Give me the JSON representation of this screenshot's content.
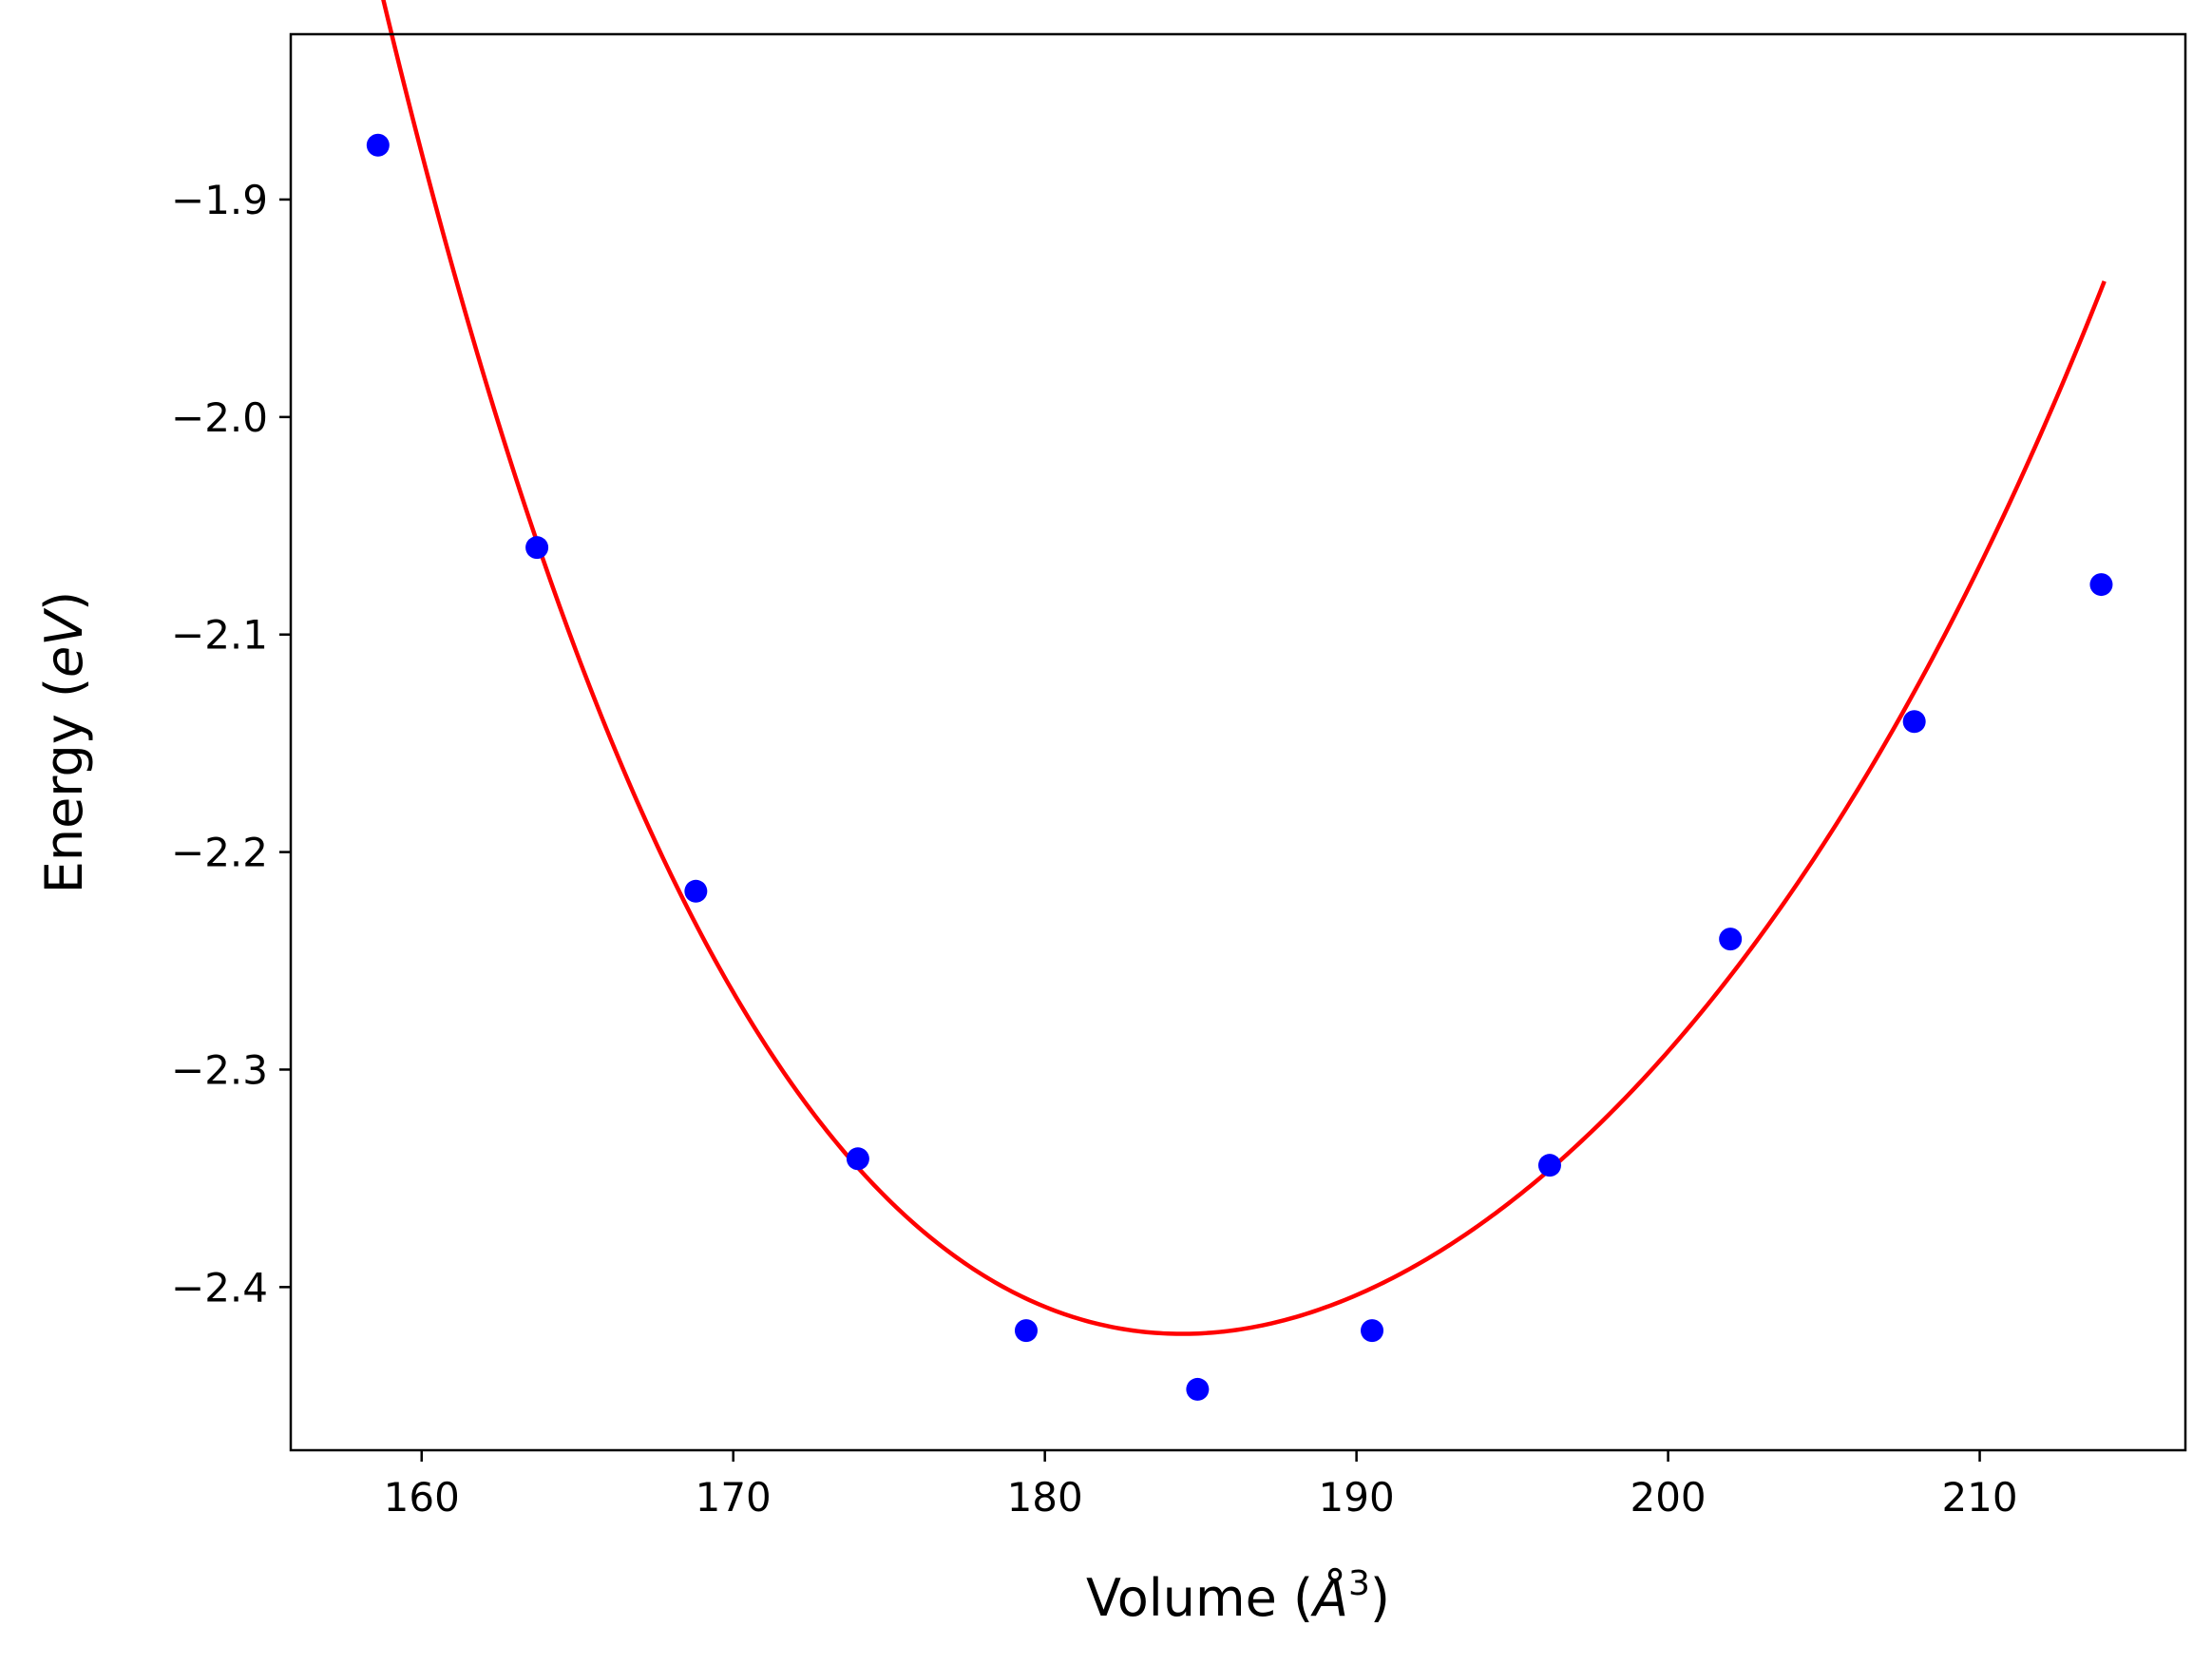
{
  "chart_data": {
    "type": "scatter",
    "xlabel_base": "Volume (",
    "xlabel_unit": "Å",
    "xlabel_exp": "3",
    "xlabel_close": ")",
    "ylabel_base": "Energy (",
    "ylabel_unit": "eV",
    "ylabel_close": ")",
    "xlim": [
      155.8,
      216.6
    ],
    "ylim": [
      -2.475,
      -1.824
    ],
    "x_ticks": [
      160,
      170,
      180,
      190,
      200,
      210
    ],
    "y_ticks": [
      -1.9,
      -2.0,
      -2.1,
      -2.2,
      -2.3,
      -2.4
    ],
    "x_tick_labels": [
      "160",
      "170",
      "180",
      "190",
      "200",
      "210"
    ],
    "y_tick_labels": [
      "−1.9",
      "−2.0",
      "−2.1",
      "−2.2",
      "−2.3",
      "−2.4"
    ],
    "grid": false,
    "series": [
      {
        "kind": "points",
        "color": "#0000ff",
        "x": [
          158.6,
          163.7,
          168.8,
          174.0,
          179.4,
          184.9,
          190.5,
          196.2,
          202.0,
          207.9,
          213.9
        ],
        "y": [
          -1.875,
          -2.06,
          -2.218,
          -2.341,
          -2.42,
          -2.447,
          -2.42,
          -2.344,
          -2.24,
          -2.14,
          -2.077
        ]
      },
      {
        "kind": "fit-line",
        "color": "#ff0000",
        "x_range": [
          158.6,
          214.0
        ],
        "curve": {
          "V0": 184.4,
          "E0": -2.4215,
          "a2": 0.000605,
          "a3": -7.7e-06,
          "a4": 2e-07
        }
      }
    ]
  }
}
